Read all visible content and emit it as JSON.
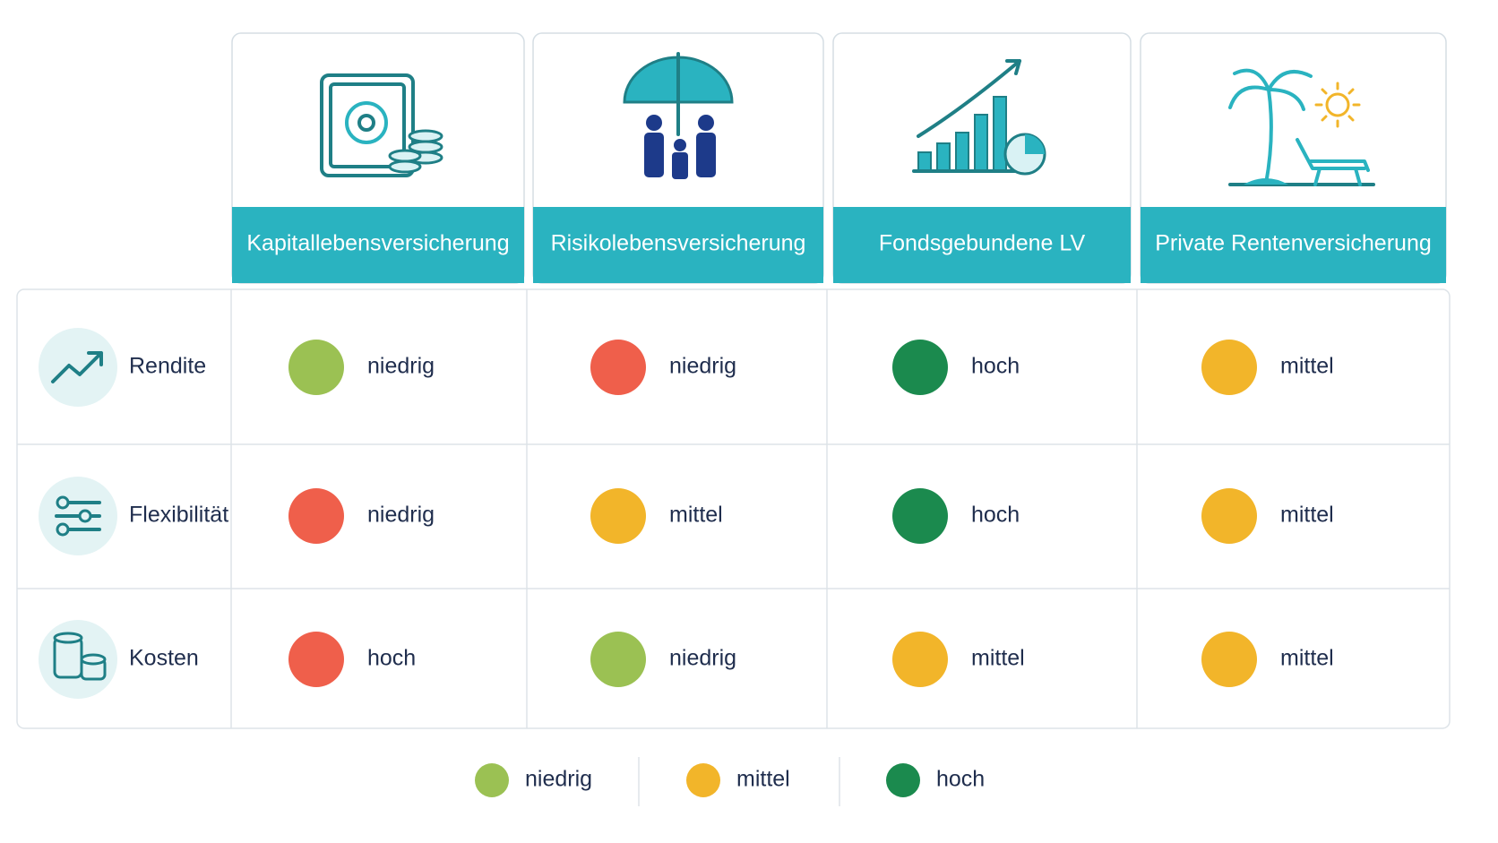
{
  "columns": [
    "Kapitallebensversicherung",
    "Risikolebensversicherung",
    "Fondsgebundene LV",
    "Private Rentenversicherung"
  ],
  "rows": [
    {
      "label": "Rendite",
      "cells": [
        {
          "text": "niedrig",
          "color": "#9bc153"
        },
        {
          "text": "niedrig",
          "color": "#ef5f4b"
        },
        {
          "text": "hoch",
          "color": "#1b8a4e"
        },
        {
          "text": "mittel",
          "color": "#f2b52a"
        }
      ]
    },
    {
      "label": "Flexibilität",
      "cells": [
        {
          "text": "niedrig",
          "color": "#ef5f4b"
        },
        {
          "text": "mittel",
          "color": "#f2b52a"
        },
        {
          "text": "hoch",
          "color": "#1b8a4e"
        },
        {
          "text": "mittel",
          "color": "#f2b52a"
        }
      ]
    },
    {
      "label": "Kosten",
      "cells": [
        {
          "text": "hoch",
          "color": "#ef5f4b"
        },
        {
          "text": "niedrig",
          "color": "#9bc153"
        },
        {
          "text": "mittel",
          "color": "#f2b52a"
        },
        {
          "text": "mittel",
          "color": "#f2b52a"
        }
      ]
    }
  ],
  "legend": [
    {
      "text": "niedrig",
      "color": "#9bc153"
    },
    {
      "text": "mittel",
      "color": "#f2b52a"
    },
    {
      "text": "hoch",
      "color": "#1b8a4e"
    }
  ]
}
